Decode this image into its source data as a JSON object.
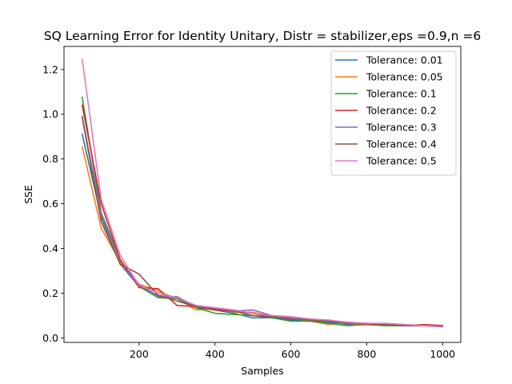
{
  "chart_data": {
    "type": "line",
    "title": "SQ Learning Error for Identity Unitary, Distr = stabilizer,eps =0.9,n =6",
    "xlabel": "Samples",
    "ylabel": "SSE",
    "xlim": [
      2,
      1048
    ],
    "ylim": [
      -0.02,
      1.303
    ],
    "xticks": [
      200,
      400,
      600,
      800,
      1000
    ],
    "yticks": [
      0.0,
      0.2,
      0.4,
      0.6,
      0.8,
      1.0,
      1.2
    ],
    "grid": false,
    "legend_position": "top-right",
    "x": [
      50,
      100,
      150,
      200,
      250,
      300,
      350,
      400,
      450,
      500,
      550,
      600,
      650,
      700,
      750,
      800,
      850,
      900,
      950,
      1000
    ],
    "series": [
      {
        "name": "Tolerance: 0.01",
        "color": "#1f77b4",
        "values": [
          0.91,
          0.54,
          0.33,
          0.23,
          0.19,
          0.18,
          0.135,
          0.125,
          0.11,
          0.09,
          0.09,
          0.08,
          0.075,
          0.07,
          0.06,
          0.065,
          0.06,
          0.055,
          0.055,
          0.05
        ]
      },
      {
        "name": "Tolerance: 0.05",
        "color": "#ff7f0e",
        "values": [
          0.855,
          0.49,
          0.34,
          0.24,
          0.21,
          0.175,
          0.125,
          0.13,
          0.115,
          0.115,
          0.095,
          0.09,
          0.075,
          0.06,
          0.065,
          0.06,
          0.055,
          0.055,
          0.055,
          0.05
        ]
      },
      {
        "name": "Tolerance: 0.1",
        "color": "#2ca02c",
        "values": [
          1.075,
          0.56,
          0.35,
          0.23,
          0.18,
          0.175,
          0.135,
          0.11,
          0.105,
          0.1,
          0.09,
          0.075,
          0.075,
          0.065,
          0.055,
          0.06,
          0.055,
          0.055,
          0.055,
          0.05
        ]
      },
      {
        "name": "Tolerance: 0.2",
        "color": "#d62728",
        "values": [
          1.04,
          0.6,
          0.35,
          0.225,
          0.22,
          0.145,
          0.14,
          0.125,
          0.12,
          0.11,
          0.095,
          0.09,
          0.085,
          0.075,
          0.07,
          0.06,
          0.06,
          0.055,
          0.06,
          0.055
        ]
      },
      {
        "name": "Tolerance: 0.3",
        "color": "#9467bd",
        "values": [
          0.99,
          0.55,
          0.33,
          0.24,
          0.185,
          0.185,
          0.14,
          0.135,
          0.12,
          0.125,
          0.1,
          0.09,
          0.08,
          0.075,
          0.07,
          0.065,
          0.06,
          0.06,
          0.055,
          0.05
        ]
      },
      {
        "name": "Tolerance: 0.4",
        "color": "#8c564b",
        "values": [
          0.985,
          0.52,
          0.33,
          0.285,
          0.19,
          0.165,
          0.14,
          0.13,
          0.12,
          0.1,
          0.095,
          0.085,
          0.08,
          0.075,
          0.065,
          0.065,
          0.06,
          0.055,
          0.055,
          0.05
        ]
      },
      {
        "name": "Tolerance: 0.5",
        "color": "#e377c2",
        "values": [
          1.245,
          0.62,
          0.37,
          0.235,
          0.2,
          0.18,
          0.145,
          0.135,
          0.125,
          0.11,
          0.1,
          0.095,
          0.085,
          0.08,
          0.07,
          0.065,
          0.065,
          0.06,
          0.055,
          0.05
        ]
      }
    ]
  }
}
